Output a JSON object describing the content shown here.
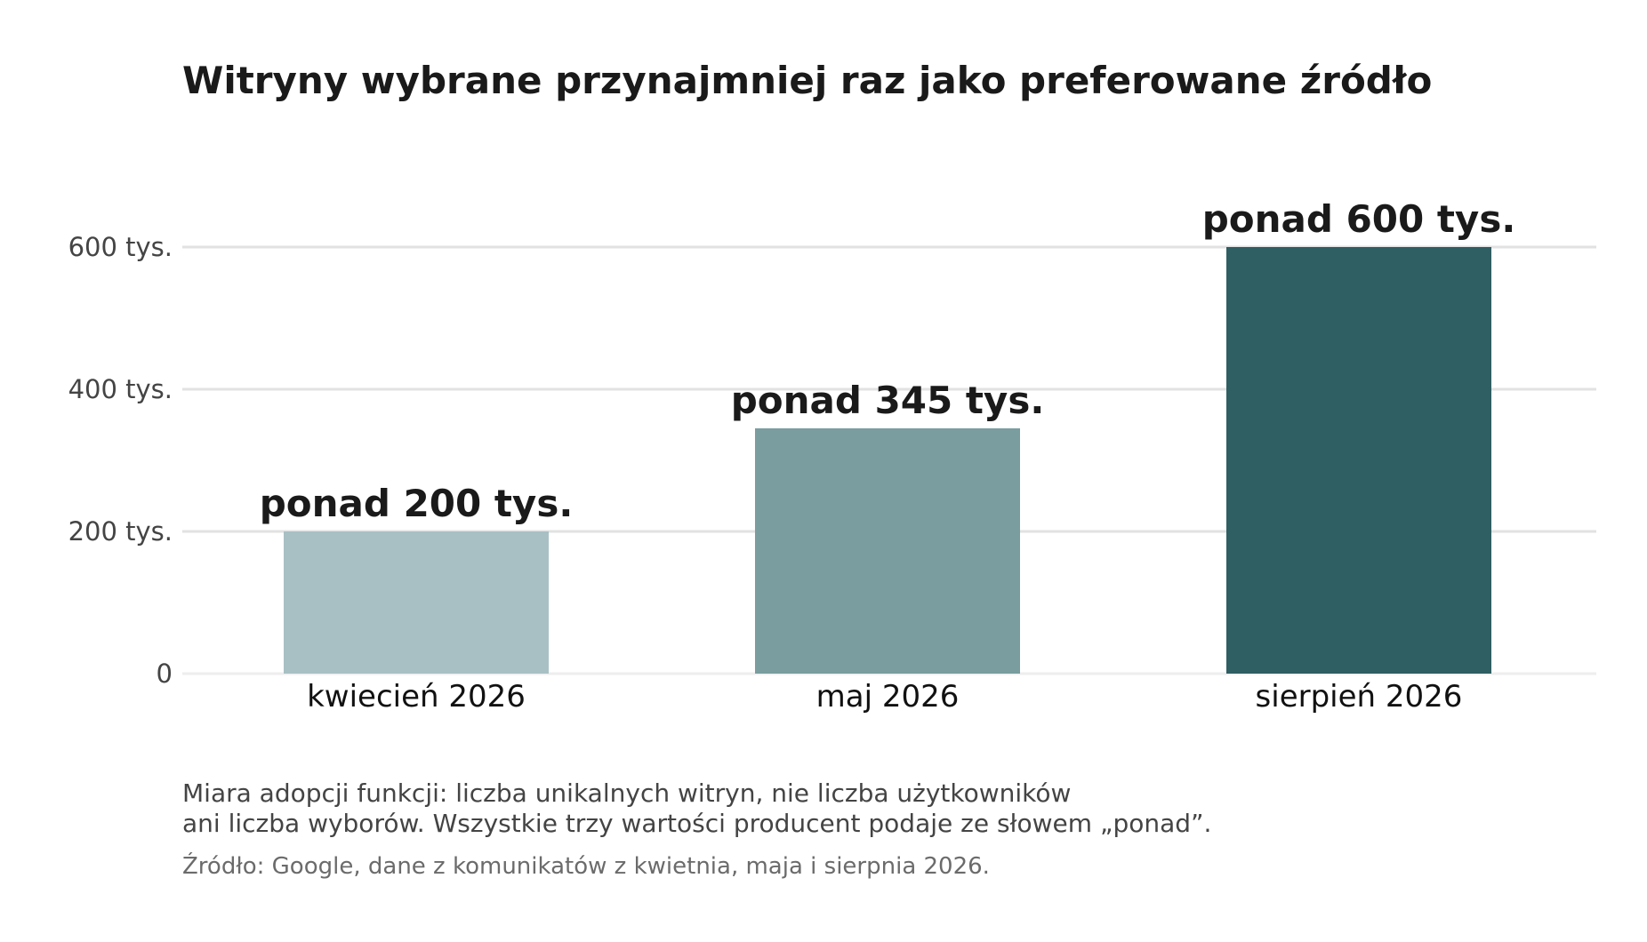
{
  "chart_data": {
    "type": "bar",
    "title": "Witryny wybrane przynajmniej raz jako preferowane źródło",
    "categories": [
      "kwiecień 2026",
      "maj 2026",
      "sierpień 2026"
    ],
    "values": [
      200000,
      345000,
      600000
    ],
    "data_labels": [
      "ponad 200 tys.",
      "ponad 345 tys.",
      "ponad 600 tys."
    ],
    "bar_colors": [
      "#a8c0c3",
      "#7a9d9f",
      "#2f5e63"
    ],
    "y_ticks": [
      0,
      200000,
      400000,
      600000
    ],
    "y_tick_labels": [
      "0",
      "200 tys.",
      "400 tys.",
      "600 tys."
    ],
    "ylim": [
      0,
      600000
    ],
    "xlabel": "",
    "ylabel": "",
    "grid": "horizontal",
    "legend": "none"
  },
  "notes": {
    "line1": "Miara adopcji funkcji: liczba unikalnych witryn, nie liczba użytkowników",
    "line2": "ani liczba wyborów. Wszystkie trzy wartości producent podaje ze słowem „ponad”.",
    "source": "Źródło: Google, dane z komunikatów z kwietnia, maja i sierpnia 2026."
  }
}
